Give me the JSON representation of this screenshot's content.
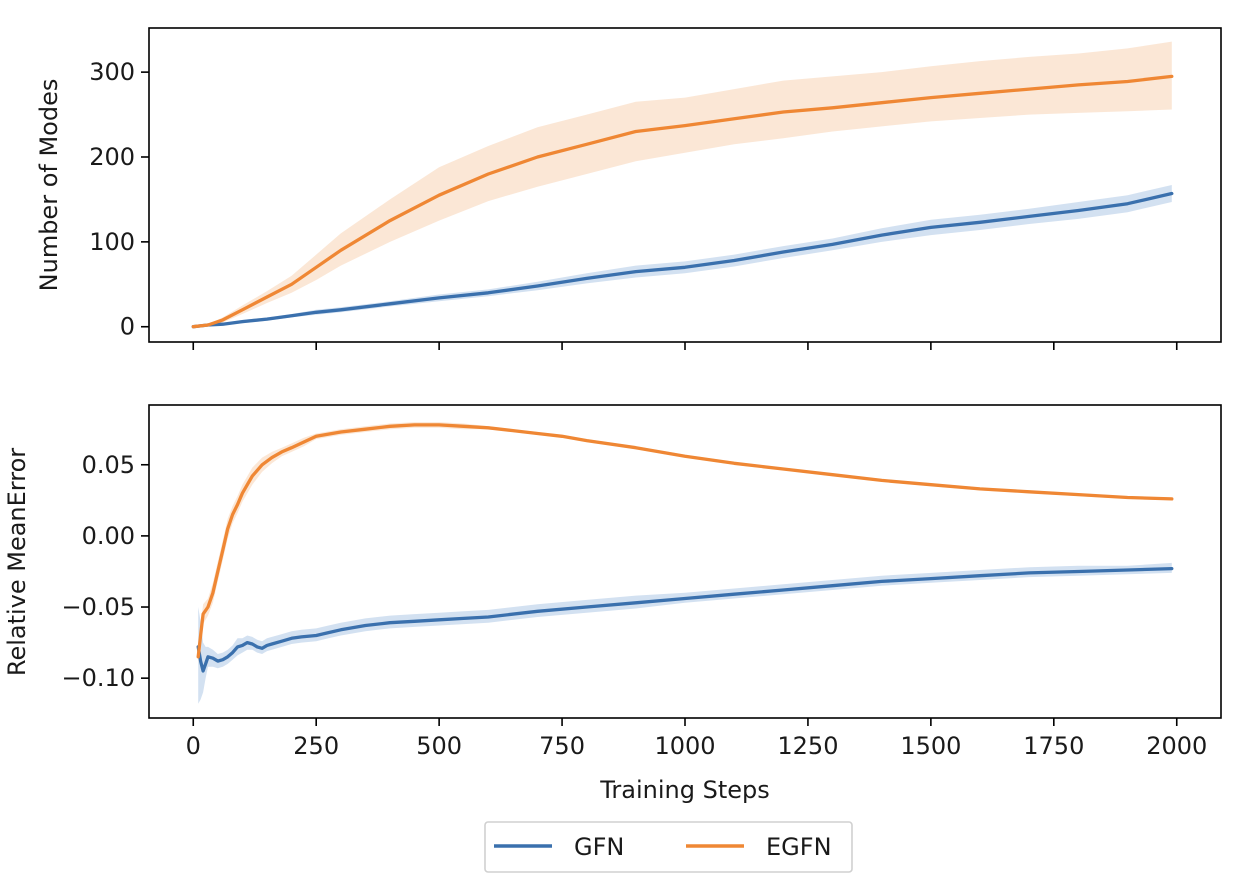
{
  "chart_data": [
    {
      "type": "line",
      "title": "",
      "xlabel": "",
      "ylabel": "Number of Modes",
      "xlim": [
        -90,
        2090
      ],
      "ylim": [
        -18,
        352
      ],
      "x_ticks": [
        0,
        250,
        500,
        750,
        1000,
        1250,
        1500,
        1750,
        2000
      ],
      "x_tick_labels_visible": false,
      "y_ticks": [
        0,
        100,
        200,
        300
      ],
      "y_tick_labels": [
        "0",
        "100",
        "200",
        "300"
      ],
      "series": [
        {
          "name": "GFN",
          "color": "#3a70ad",
          "band_color": "#cbdcee",
          "x": [
            0,
            30,
            60,
            100,
            150,
            200,
            250,
            300,
            400,
            500,
            600,
            700,
            800,
            900,
            1000,
            1100,
            1200,
            1300,
            1400,
            1500,
            1600,
            1700,
            1800,
            1900,
            1990
          ],
          "mean": [
            0,
            2,
            3,
            6,
            9,
            13,
            17,
            20,
            27,
            34,
            40,
            48,
            57,
            65,
            70,
            78,
            88,
            97,
            108,
            117,
            123,
            130,
            137,
            145,
            157
          ],
          "lower": [
            0,
            1,
            2,
            4,
            7,
            11,
            14,
            17,
            24,
            30,
            36,
            43,
            51,
            58,
            63,
            71,
            81,
            90,
            100,
            108,
            114,
            121,
            127,
            135,
            147
          ],
          "upper": [
            0,
            3,
            4,
            8,
            11,
            15,
            20,
            23,
            30,
            38,
            44,
            53,
            63,
            72,
            77,
            85,
            95,
            104,
            116,
            126,
            132,
            139,
            147,
            155,
            167
          ]
        },
        {
          "name": "EGFN",
          "color": "#ef8734",
          "band_color": "#fae3cf",
          "x": [
            0,
            30,
            60,
            100,
            150,
            200,
            250,
            300,
            400,
            500,
            600,
            700,
            800,
            900,
            1000,
            1100,
            1200,
            1300,
            1400,
            1500,
            1600,
            1700,
            1800,
            1900,
            1990
          ],
          "mean": [
            0,
            2,
            8,
            20,
            35,
            50,
            70,
            90,
            125,
            155,
            180,
            200,
            215,
            230,
            237,
            245,
            253,
            258,
            264,
            270,
            275,
            280,
            285,
            289,
            295
          ],
          "lower": [
            0,
            1,
            5,
            15,
            28,
            40,
            55,
            72,
            100,
            125,
            148,
            165,
            180,
            195,
            205,
            215,
            222,
            230,
            236,
            242,
            246,
            250,
            252,
            254,
            256
          ],
          "upper": [
            0,
            3,
            11,
            25,
            42,
            60,
            85,
            110,
            150,
            188,
            213,
            235,
            250,
            265,
            270,
            280,
            290,
            295,
            300,
            307,
            313,
            318,
            322,
            328,
            336
          ]
        }
      ]
    },
    {
      "type": "line",
      "title": "",
      "xlabel": "Training Steps",
      "ylabel": "Relative MeanError",
      "xlim": [
        -90,
        2090
      ],
      "ylim": [
        -0.128,
        0.092
      ],
      "x_ticks": [
        0,
        250,
        500,
        750,
        1000,
        1250,
        1500,
        1750,
        2000
      ],
      "x_tick_labels": [
        "0",
        "250",
        "500",
        "750",
        "1000",
        "1250",
        "1500",
        "1750",
        "2000"
      ],
      "y_ticks": [
        -0.1,
        -0.05,
        0.0,
        0.05
      ],
      "y_tick_labels": [
        "−0.10",
        "−0.05",
        "0.00",
        "0.05"
      ],
      "series": [
        {
          "name": "GFN",
          "color": "#3a70ad",
          "band_color": "#cbdcee",
          "x": [
            10,
            15,
            20,
            25,
            30,
            40,
            50,
            60,
            70,
            80,
            90,
            100,
            110,
            120,
            130,
            140,
            150,
            160,
            180,
            200,
            220,
            250,
            275,
            300,
            350,
            400,
            450,
            500,
            550,
            600,
            700,
            800,
            900,
            1000,
            1100,
            1200,
            1300,
            1400,
            1500,
            1600,
            1700,
            1800,
            1900,
            1990
          ],
          "mean": [
            -0.078,
            -0.088,
            -0.095,
            -0.09,
            -0.085,
            -0.086,
            -0.088,
            -0.087,
            -0.085,
            -0.082,
            -0.078,
            -0.077,
            -0.075,
            -0.076,
            -0.078,
            -0.079,
            -0.077,
            -0.076,
            -0.074,
            -0.072,
            -0.071,
            -0.07,
            -0.068,
            -0.066,
            -0.063,
            -0.061,
            -0.06,
            -0.059,
            -0.058,
            -0.057,
            -0.053,
            -0.05,
            -0.047,
            -0.044,
            -0.041,
            -0.038,
            -0.035,
            -0.032,
            -0.03,
            -0.028,
            -0.026,
            -0.025,
            -0.024,
            -0.023
          ],
          "lower": [
            -0.118,
            -0.115,
            -0.11,
            -0.1,
            -0.092,
            -0.092,
            -0.093,
            -0.092,
            -0.09,
            -0.087,
            -0.084,
            -0.082,
            -0.08,
            -0.08,
            -0.082,
            -0.083,
            -0.081,
            -0.08,
            -0.078,
            -0.076,
            -0.075,
            -0.074,
            -0.072,
            -0.07,
            -0.067,
            -0.065,
            -0.064,
            -0.063,
            -0.062,
            -0.061,
            -0.057,
            -0.054,
            -0.051,
            -0.047,
            -0.044,
            -0.041,
            -0.038,
            -0.035,
            -0.033,
            -0.031,
            -0.029,
            -0.028,
            -0.027,
            -0.026
          ],
          "upper": [
            -0.05,
            -0.06,
            -0.075,
            -0.078,
            -0.078,
            -0.08,
            -0.083,
            -0.082,
            -0.08,
            -0.077,
            -0.072,
            -0.072,
            -0.07,
            -0.071,
            -0.073,
            -0.074,
            -0.072,
            -0.071,
            -0.069,
            -0.067,
            -0.066,
            -0.065,
            -0.063,
            -0.061,
            -0.058,
            -0.056,
            -0.055,
            -0.054,
            -0.053,
            -0.052,
            -0.048,
            -0.045,
            -0.042,
            -0.04,
            -0.037,
            -0.034,
            -0.031,
            -0.028,
            -0.026,
            -0.024,
            -0.022,
            -0.021,
            -0.021,
            -0.019
          ]
        },
        {
          "name": "EGFN",
          "color": "#ef8734",
          "band_color": "#fae3cf",
          "x": [
            10,
            15,
            20,
            30,
            40,
            50,
            60,
            70,
            80,
            90,
            100,
            120,
            140,
            160,
            180,
            200,
            225,
            250,
            300,
            350,
            400,
            450,
            500,
            550,
            600,
            650,
            700,
            750,
            800,
            900,
            1000,
            1100,
            1200,
            1300,
            1400,
            1500,
            1600,
            1700,
            1800,
            1900,
            1990
          ],
          "mean": [
            -0.085,
            -0.07,
            -0.055,
            -0.05,
            -0.04,
            -0.025,
            -0.01,
            0.005,
            0.015,
            0.022,
            0.03,
            0.042,
            0.05,
            0.055,
            0.059,
            0.062,
            0.066,
            0.07,
            0.073,
            0.075,
            0.077,
            0.078,
            0.078,
            0.077,
            0.076,
            0.074,
            0.072,
            0.07,
            0.067,
            0.062,
            0.056,
            0.051,
            0.047,
            0.043,
            0.039,
            0.036,
            0.033,
            0.031,
            0.029,
            0.027,
            0.026
          ],
          "lower": [
            -0.09,
            -0.076,
            -0.062,
            -0.056,
            -0.047,
            -0.032,
            -0.017,
            -0.002,
            0.009,
            0.016,
            0.024,
            0.036,
            0.045,
            0.051,
            0.056,
            0.059,
            0.063,
            0.068,
            0.071,
            0.073,
            0.075,
            0.076,
            0.076,
            0.075,
            0.075,
            0.073,
            0.071,
            0.069,
            0.066,
            0.061,
            0.055,
            0.05,
            0.046,
            0.042,
            0.038,
            0.035,
            0.032,
            0.03,
            0.028,
            0.026,
            0.025
          ],
          "upper": [
            -0.08,
            -0.064,
            -0.048,
            -0.044,
            -0.033,
            -0.018,
            -0.003,
            0.012,
            0.021,
            0.028,
            0.036,
            0.048,
            0.055,
            0.059,
            0.062,
            0.065,
            0.069,
            0.072,
            0.075,
            0.077,
            0.079,
            0.08,
            0.08,
            0.079,
            0.077,
            0.075,
            0.073,
            0.071,
            0.068,
            0.063,
            0.057,
            0.052,
            0.048,
            0.044,
            0.04,
            0.037,
            0.034,
            0.032,
            0.03,
            0.028,
            0.027
          ]
        }
      ]
    }
  ],
  "legend": {
    "placement": "bottom-center",
    "entries": [
      {
        "label": "GFN",
        "color": "#3a70ad"
      },
      {
        "label": "EGFN",
        "color": "#ef8734"
      }
    ]
  }
}
